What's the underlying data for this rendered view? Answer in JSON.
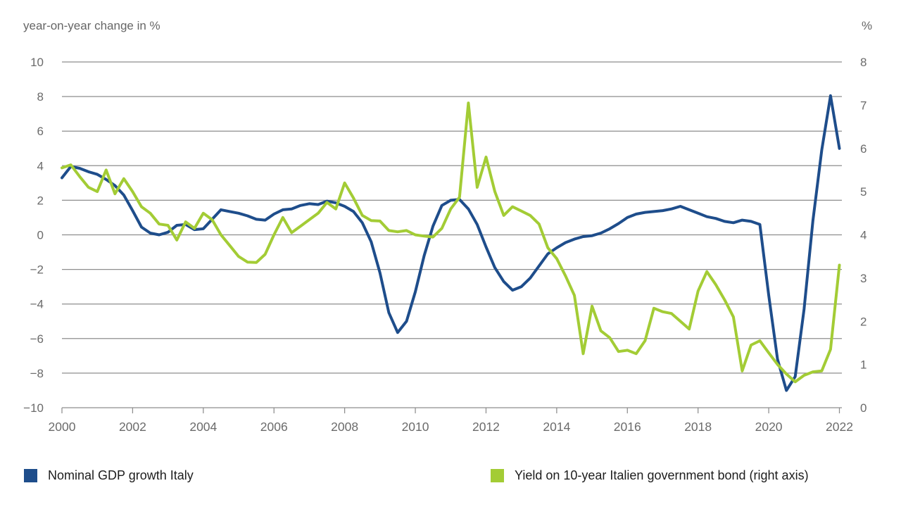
{
  "header": {
    "left_axis_title": "year-on-year change in %",
    "right_axis_title": "%"
  },
  "legend": {
    "gdp_label": "Nominal GDP growth Italy",
    "yield_label": "Yield on 10-year Italien government bond (right axis)"
  },
  "colors": {
    "gdp_line": "#1e4d8b",
    "yield_line": "#a3cc35",
    "grid": "#8e8e8e",
    "tick_text": "#6b6b6b",
    "legend_text": "#1d1d1d"
  },
  "chart_data": {
    "type": "line",
    "title": "",
    "xlabel": "",
    "ylabel_left": "year-on-year change in %",
    "ylabel_right": "%",
    "xlim": [
      2000,
      2022
    ],
    "left_ylim": [
      -10,
      10
    ],
    "right_ylim": [
      0,
      8
    ],
    "grid": "horizontal-only",
    "legend_position": "bottom",
    "left_ticks": [
      10,
      8,
      6,
      4,
      2,
      0,
      -2,
      -4,
      -6,
      -8,
      -10
    ],
    "right_ticks": [
      8,
      7,
      6,
      5,
      4,
      3,
      2,
      1,
      0
    ],
    "x_ticks": [
      2000,
      2002,
      2004,
      2006,
      2008,
      2010,
      2012,
      2014,
      2016,
      2018,
      2020,
      2022
    ],
    "x": [
      2000,
      2000.25,
      2000.5,
      2000.75,
      2001,
      2001.25,
      2001.5,
      2001.75,
      2002,
      2002.25,
      2002.5,
      2002.75,
      2003,
      2003.25,
      2003.5,
      2003.75,
      2004,
      2004.25,
      2004.5,
      2004.75,
      2005,
      2005.25,
      2005.5,
      2005.75,
      2006,
      2006.25,
      2006.5,
      2006.75,
      2007,
      2007.25,
      2007.5,
      2007.75,
      2008,
      2008.25,
      2008.5,
      2008.75,
      2009,
      2009.25,
      2009.5,
      2009.75,
      2010,
      2010.25,
      2010.5,
      2010.75,
      2011,
      2011.25,
      2011.5,
      2011.75,
      2012,
      2012.25,
      2012.5,
      2012.75,
      2013,
      2013.25,
      2013.5,
      2013.75,
      2014,
      2014.25,
      2014.5,
      2014.75,
      2015,
      2015.25,
      2015.5,
      2015.75,
      2016,
      2016.25,
      2016.5,
      2016.75,
      2017,
      2017.25,
      2017.5,
      2017.75,
      2018,
      2018.25,
      2018.5,
      2018.75,
      2019,
      2019.25,
      2019.5,
      2019.75,
      2020,
      2020.25,
      2020.5,
      2020.75,
      2021,
      2021.25,
      2021.5,
      2021.75,
      2022
    ],
    "series": [
      {
        "name": "Nominal GDP growth Italy",
        "axis": "left",
        "color": "#1e4d8b",
        "values": [
          3.3,
          3.95,
          3.85,
          3.65,
          3.5,
          3.2,
          2.85,
          2.3,
          1.4,
          0.45,
          0.1,
          0,
          0.15,
          0.55,
          0.6,
          0.3,
          0.35,
          0.9,
          1.45,
          1.35,
          1.25,
          1.1,
          0.9,
          0.85,
          1.2,
          1.45,
          1.5,
          1.7,
          1.8,
          1.75,
          1.95,
          1.85,
          1.65,
          1.35,
          0.7,
          -0.4,
          -2.2,
          -4.5,
          -5.65,
          -5.0,
          -3.3,
          -1.2,
          0.5,
          1.7,
          2.0,
          2.05,
          1.5,
          0.6,
          -0.7,
          -1.9,
          -2.7,
          -3.2,
          -3.0,
          -2.5,
          -1.8,
          -1.1,
          -0.75,
          -0.45,
          -0.25,
          -0.1,
          -0.05,
          0.1,
          0.35,
          0.65,
          1.0,
          1.2,
          1.3,
          1.35,
          1.4,
          1.5,
          1.65,
          1.45,
          1.25,
          1.05,
          0.95,
          0.78,
          0.7,
          0.85,
          0.78,
          0.6,
          -3.5,
          -7.2,
          -9.0,
          -8.2,
          -4.3,
          0.8,
          4.9,
          8.05,
          5.0
        ]
      },
      {
        "name": "Yield on 10-year Italien government bond (right axis)",
        "axis": "right",
        "color": "#a3cc35",
        "values": [
          5.55,
          5.62,
          5.35,
          5.1,
          5.0,
          5.5,
          4.95,
          5.3,
          5.0,
          4.65,
          4.5,
          4.25,
          4.22,
          3.88,
          4.3,
          4.15,
          4.5,
          4.35,
          4.0,
          3.75,
          3.5,
          3.37,
          3.36,
          3.55,
          4.0,
          4.4,
          4.05,
          4.2,
          4.35,
          4.5,
          4.75,
          4.6,
          5.2,
          4.85,
          4.45,
          4.33,
          4.32,
          4.1,
          4.07,
          4.1,
          4.0,
          3.97,
          3.95,
          4.15,
          4.6,
          4.87,
          7.05,
          5.1,
          5.8,
          5.0,
          4.45,
          4.65,
          4.55,
          4.45,
          4.25,
          3.7,
          3.45,
          3.05,
          2.6,
          1.25,
          2.35,
          1.78,
          1.62,
          1.3,
          1.33,
          1.25,
          1.55,
          2.3,
          2.22,
          2.18,
          2.0,
          1.82,
          2.7,
          3.15,
          2.85,
          2.5,
          2.1,
          0.85,
          1.45,
          1.55,
          1.27,
          1.0,
          0.78,
          0.6,
          0.75,
          0.83,
          0.85,
          1.35,
          3.3
        ]
      }
    ]
  }
}
